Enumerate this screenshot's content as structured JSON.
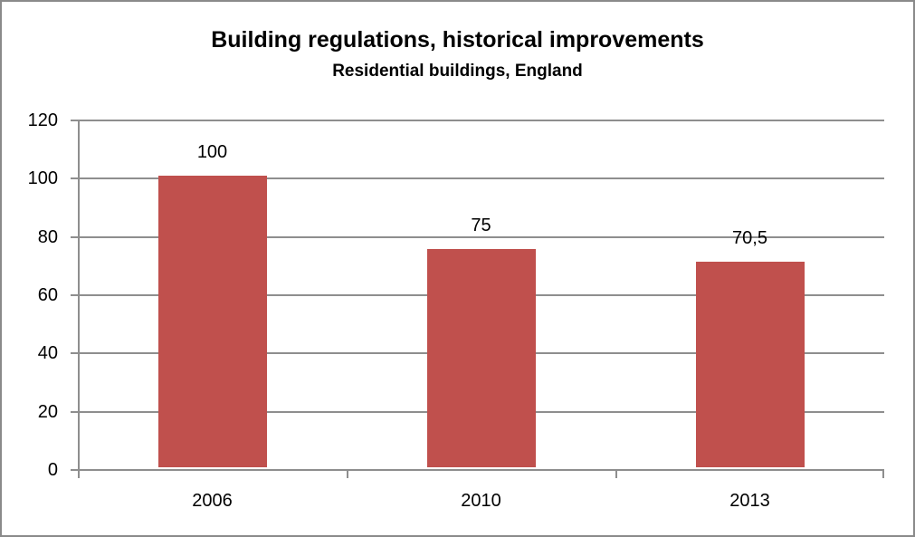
{
  "chart_data": {
    "type": "bar",
    "title": "Building regulations, historical improvements",
    "subtitle": "Residential buildings, England",
    "categories": [
      "2006",
      "2010",
      "2013"
    ],
    "values": [
      100,
      75,
      70.5
    ],
    "data_labels": [
      "100",
      "75",
      "70,5"
    ],
    "yticks": [
      0,
      20,
      40,
      60,
      80,
      100,
      120
    ],
    "ylim": [
      0,
      120
    ],
    "xlabel": "",
    "ylabel": "",
    "grid": true,
    "legend_position": "none",
    "bar_color": "#c0504d",
    "axis_color": "#8e8e8e",
    "text_color": "#000000",
    "border_color": "#8a8a8a"
  }
}
